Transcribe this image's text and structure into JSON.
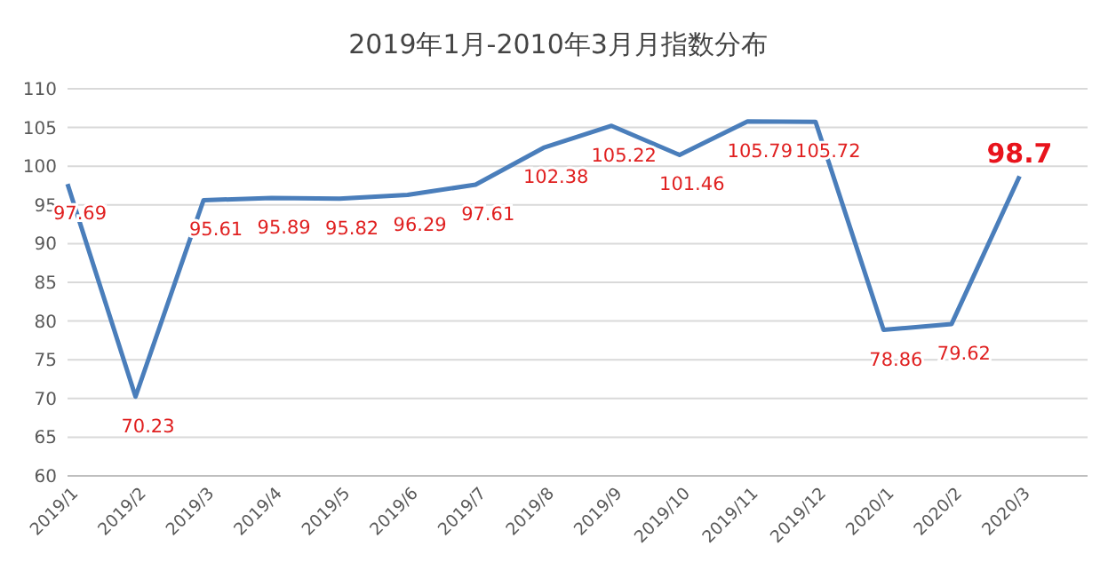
{
  "chart_data": {
    "type": "line",
    "title": "2019年1月-2010年3月月指数分布",
    "categories": [
      "2019/1",
      "2019/2",
      "2019/3",
      "2019/4",
      "2019/5",
      "2019/6",
      "2019/7",
      "2019/8",
      "2019/9",
      "2019/10",
      "2019/11",
      "2019/12",
      "2020/1",
      "2020/2",
      "2020/3"
    ],
    "series": [
      {
        "color": "#4a7ebb",
        "values": [
          97.69,
          70.23,
          95.61,
          95.89,
          95.82,
          96.29,
          97.61,
          102.38,
          105.22,
          101.46,
          105.79,
          105.72,
          78.86,
          79.62,
          98.7
        ]
      }
    ],
    "data_labels": true,
    "ylim": [
      60,
      110
    ],
    "yticks": [
      60,
      65,
      70,
      75,
      80,
      85,
      90,
      95,
      100,
      105,
      110
    ],
    "grid": "y",
    "marker": "none",
    "line_style": "solid"
  }
}
